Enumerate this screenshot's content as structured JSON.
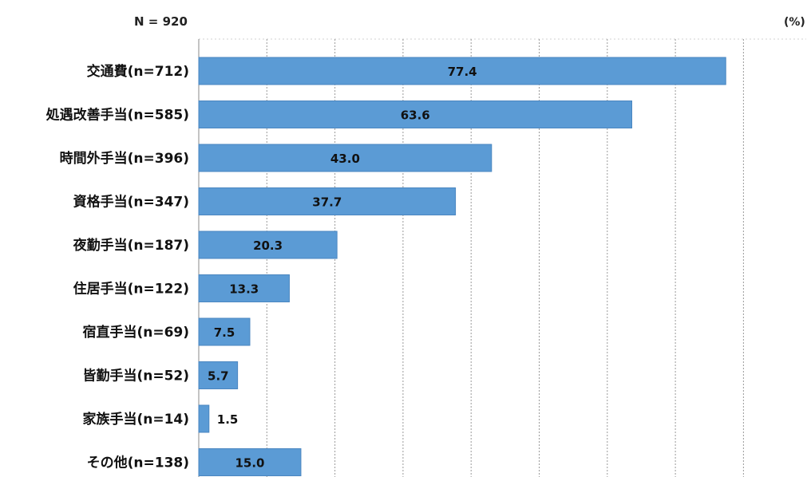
{
  "header": {
    "sample_size": "N = 920",
    "unit": "(%)"
  },
  "colors": {
    "bar": "#5b9bd5",
    "bar_border": "#4a86c0",
    "grid": "#9a9a9a",
    "top_grid": "#d0d0d0"
  },
  "chart_data": {
    "type": "bar",
    "orientation": "horizontal",
    "title": "",
    "xlabel": "",
    "ylabel": "",
    "xlim": [
      0,
      85
    ],
    "grid": true,
    "categories": [
      "交通費(n=712)",
      "処遇改善手当(n=585)",
      "時間外手当(n=396)",
      "資格手当(n=347)",
      "夜勤手当(n=187)",
      "住居手当(n=122)",
      "宿直手当(n=69)",
      "皆勤手当(n=52)",
      "家族手当(n=14)",
      "その他(n=138)"
    ],
    "values": [
      77.4,
      63.6,
      43.0,
      37.7,
      20.3,
      13.3,
      7.5,
      5.7,
      1.5,
      15.0
    ],
    "value_labels": [
      "77.4",
      "63.6",
      "43.0",
      "37.7",
      "20.3",
      "13.3",
      "7.5",
      "5.7",
      "1.5",
      "15.0"
    ]
  }
}
